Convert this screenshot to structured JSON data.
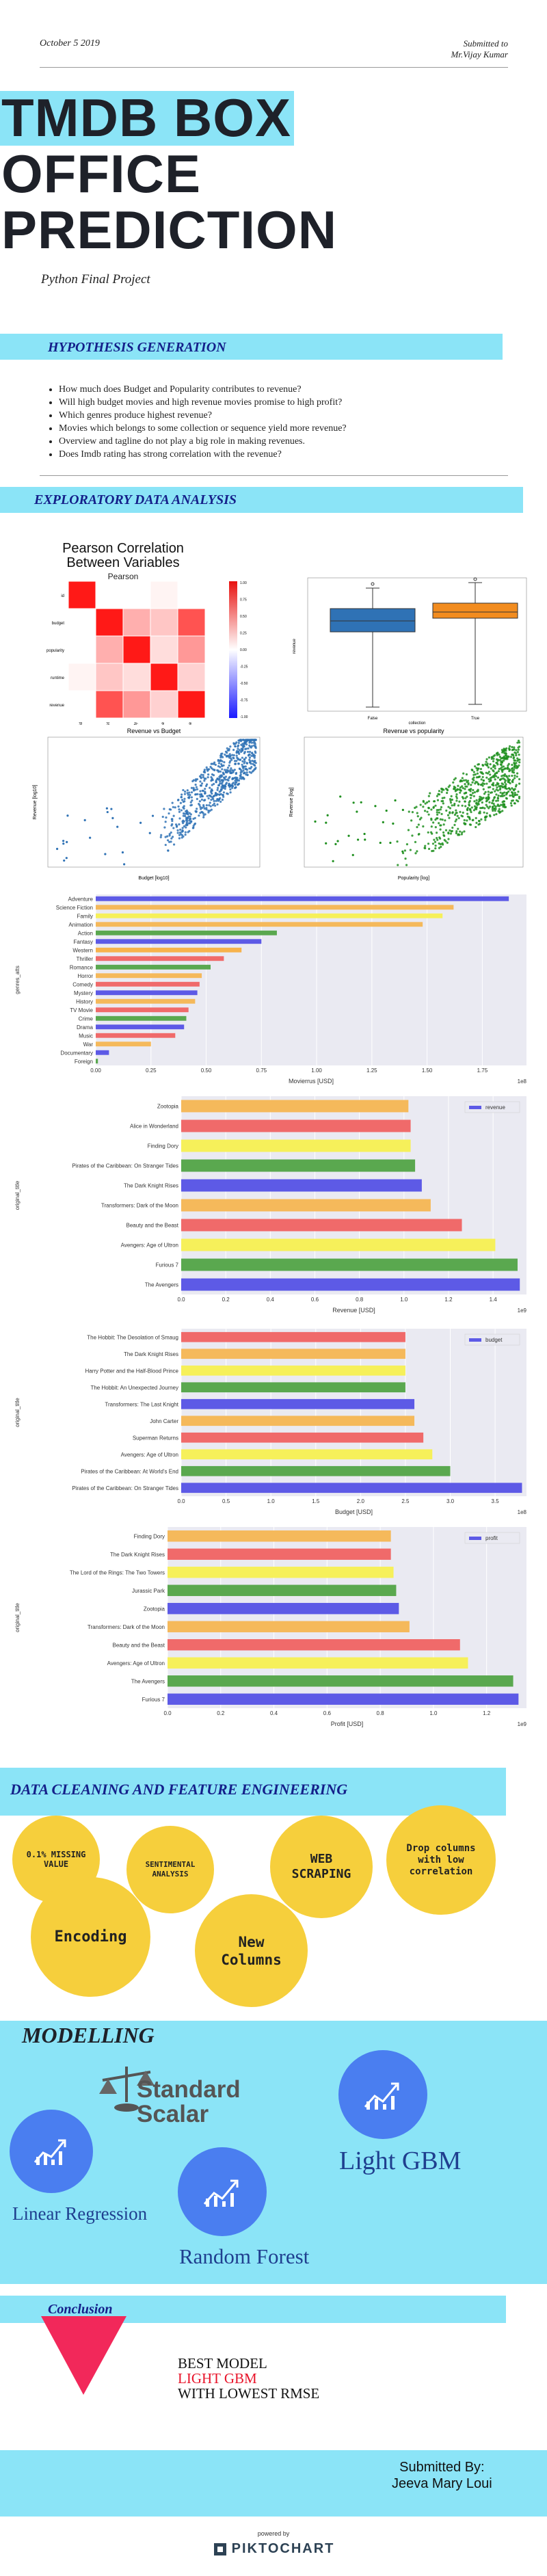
{
  "header": {
    "date": "October 5 2019",
    "submitted_to_label": "Submitted to",
    "submitted_to_name": "Mr.Vijay Kumar"
  },
  "title": {
    "line1": "TMDB BOX",
    "line2": "OFFICE",
    "line3": "PREDICTION",
    "subtitle": "Python Final Project"
  },
  "hypothesis": {
    "heading": "HYPOTHESIS GENERATION",
    "items": [
      "How much does Budget and Popularity contributes to revenue?",
      "Will high budget movies and high revenue movies promise to high profit?",
      "Which genres produce highest revenue?",
      "Movies which belongs to some collection or sequence yield more revenue?",
      "Overview and tagline do not play a big role in making revenues.",
      "Does Imdb rating has strong correlation with the revenue?"
    ]
  },
  "eda": {
    "heading": "EXPLORATORY DATA ANALYSIS",
    "heatmap": {
      "title1": "Pearson Correlation",
      "title2": "Between Variables",
      "subtitle": "Pearson",
      "labels": [
        "id",
        "budget",
        "popularity",
        "runtime",
        "revenue"
      ],
      "colorbar_ticks": [
        "1.00",
        "0.75",
        "0.50",
        "0.25",
        "0.00",
        "-0.25",
        "-0.50",
        "-0.75",
        "-1.00"
      ]
    },
    "boxplot": {
      "xlabel": "collection",
      "ylabel": "revenue",
      "categories": [
        "False",
        "True"
      ]
    },
    "scatter1": {
      "title": "Revenue vs Budget",
      "xlabel": "Budget [log10]",
      "ylabel": "Revenue [log10]"
    },
    "scatter2": {
      "title": "Revenue vs popularity",
      "xlabel": "Popularity [log]",
      "ylabel": "Revenue [log]"
    }
  },
  "genres_chart": {
    "ylabel": "genres_atts",
    "xlabel": "Movierrus [USD]",
    "exp_label": "1e8",
    "ticks": [
      "0.00",
      "0.25",
      "0.50",
      "0.75",
      "1.00",
      "1.25",
      "1.50",
      "1.75"
    ],
    "categories": [
      "Adventure",
      "Science Fiction",
      "Family",
      "Animation",
      "Action",
      "Fantasy",
      "Western",
      "Thriller",
      "Romance",
      "Horror",
      "Comedy",
      "Mystery",
      "History",
      "TV Movie",
      "Crime",
      "Drama",
      "Music",
      "War",
      "Documentary",
      "Foreign"
    ],
    "values": [
      1.87,
      1.62,
      1.57,
      1.48,
      0.82,
      0.75,
      0.66,
      0.58,
      0.52,
      0.48,
      0.47,
      0.46,
      0.45,
      0.42,
      0.41,
      0.4,
      0.36,
      0.25,
      0.06,
      0.01
    ],
    "colors": [
      "#5d5ae6",
      "#f5b95b",
      "#f6f05a",
      "#f5b95b",
      "#5aa84f",
      "#5d5ae6",
      "#f7b24c",
      "#f06a6a",
      "#5aa84f",
      "#f5b95b",
      "#f06a6a",
      "#5d5ae6",
      "#f5b95b",
      "#f06a6a",
      "#5aa84f",
      "#5d5ae6",
      "#f06a6a",
      "#f5b95b",
      "#5d5ae6",
      "#5aa84f"
    ]
  },
  "revenue_chart": {
    "ylabel": "original_title",
    "xlabel": "Revenue [USD]",
    "exp_label": "1e9",
    "legend": "revenue",
    "ticks": [
      "0.0",
      "0.2",
      "0.4",
      "0.6",
      "0.8",
      "1.0",
      "1.2",
      "1.4"
    ],
    "categories": [
      "Zootopia",
      "Alice in Wonderland",
      "Finding Dory",
      "Pirates of the Caribbean: On Stranger Tides",
      "The Dark Knight Rises",
      "Transformers: Dark of the Moon",
      "Beauty and the Beast",
      "Avengers: Age of Ultron",
      "Furious 7",
      "The Avengers"
    ],
    "values": [
      1.02,
      1.03,
      1.03,
      1.05,
      1.08,
      1.12,
      1.26,
      1.41,
      1.51,
      1.52
    ],
    "colors": [
      "#f5b95b",
      "#f06a6a",
      "#f6f05a",
      "#5aa84f",
      "#5d5ae6",
      "#f5b95b",
      "#f06a6a",
      "#f6f05a",
      "#5aa84f",
      "#5d5ae6"
    ]
  },
  "budget_chart": {
    "ylabel": "original_title",
    "xlabel": "Budget [USD]",
    "exp_label": "1e8",
    "legend": "budget",
    "ticks": [
      "0.0",
      "0.5",
      "1.0",
      "1.5",
      "2.0",
      "2.5",
      "3.0",
      "3.5"
    ],
    "categories": [
      "The Hobbit: The Desolation of Smaug",
      "The Dark Knight Rises",
      "Harry Potter and the Half-Blood Prince",
      "The Hobbit: An Unexpected Journey",
      "Transformers: The Last Knight",
      "John Carter",
      "Superman Returns",
      "Avengers: Age of Ultron",
      "Pirates of the Caribbean: At World's End",
      "Pirates of the Caribbean: On Stranger Tides"
    ],
    "values": [
      2.5,
      2.5,
      2.5,
      2.5,
      2.6,
      2.6,
      2.7,
      2.8,
      3.0,
      3.8
    ],
    "colors": [
      "#f06a6a",
      "#f5b95b",
      "#f6f05a",
      "#5aa84f",
      "#5d5ae6",
      "#f5b95b",
      "#f06a6a",
      "#f6f05a",
      "#5aa84f",
      "#5d5ae6"
    ]
  },
  "profit_chart": {
    "ylabel": "original_title",
    "xlabel": "Profit [USD]",
    "exp_label": "1e9",
    "legend": "profit",
    "ticks": [
      "0.0",
      "0.2",
      "0.4",
      "0.6",
      "0.8",
      "1.0",
      "1.2"
    ],
    "categories": [
      "Finding Dory",
      "The Dark Knight Rises",
      "The Lord of the Rings: The Two Towers",
      "Jurassic Park",
      "Zootopia",
      "Transformers: Dark of the Moon",
      "Beauty and the Beast",
      "Avengers: Age of Ultron",
      "The Avengers",
      "Furious 7"
    ],
    "values": [
      0.84,
      0.84,
      0.85,
      0.86,
      0.87,
      0.91,
      1.1,
      1.13,
      1.3,
      1.32
    ],
    "colors": [
      "#f5b95b",
      "#f06a6a",
      "#f6f05a",
      "#5aa84f",
      "#5d5ae6",
      "#f5b95b",
      "#f06a6a",
      "#f6f05a",
      "#5aa84f",
      "#5d5ae6"
    ]
  },
  "cleaning": {
    "heading": "DATA CLEANING AND FEATURE ENGINEERING",
    "missing": "0.1% MISSING VALUE",
    "sentimental": "SENTIMENTAL ANALYSIS",
    "web": "WEB SCRAPING",
    "drop": "Drop columns with low correlation",
    "encoding": "Encoding",
    "new_columns": "New Columns"
  },
  "modelling": {
    "heading": "MODELLING",
    "standard": "Standard",
    "scalar": "Scalar",
    "light_gbm": "Light GBM",
    "linear_regression": "Linear Regression",
    "random_forest": "Random Forest"
  },
  "conclusion": {
    "heading": "Conclusion",
    "line1": "BEST MODEL",
    "line2": "LIGHT GBM",
    "line3": "WITH LOWEST RMSE"
  },
  "footer": {
    "submitted_by": "Submitted By:",
    "name": "Jeeva Mary Loui",
    "powered_by": "powered by",
    "brand": "PIKTOCHART"
  }
}
